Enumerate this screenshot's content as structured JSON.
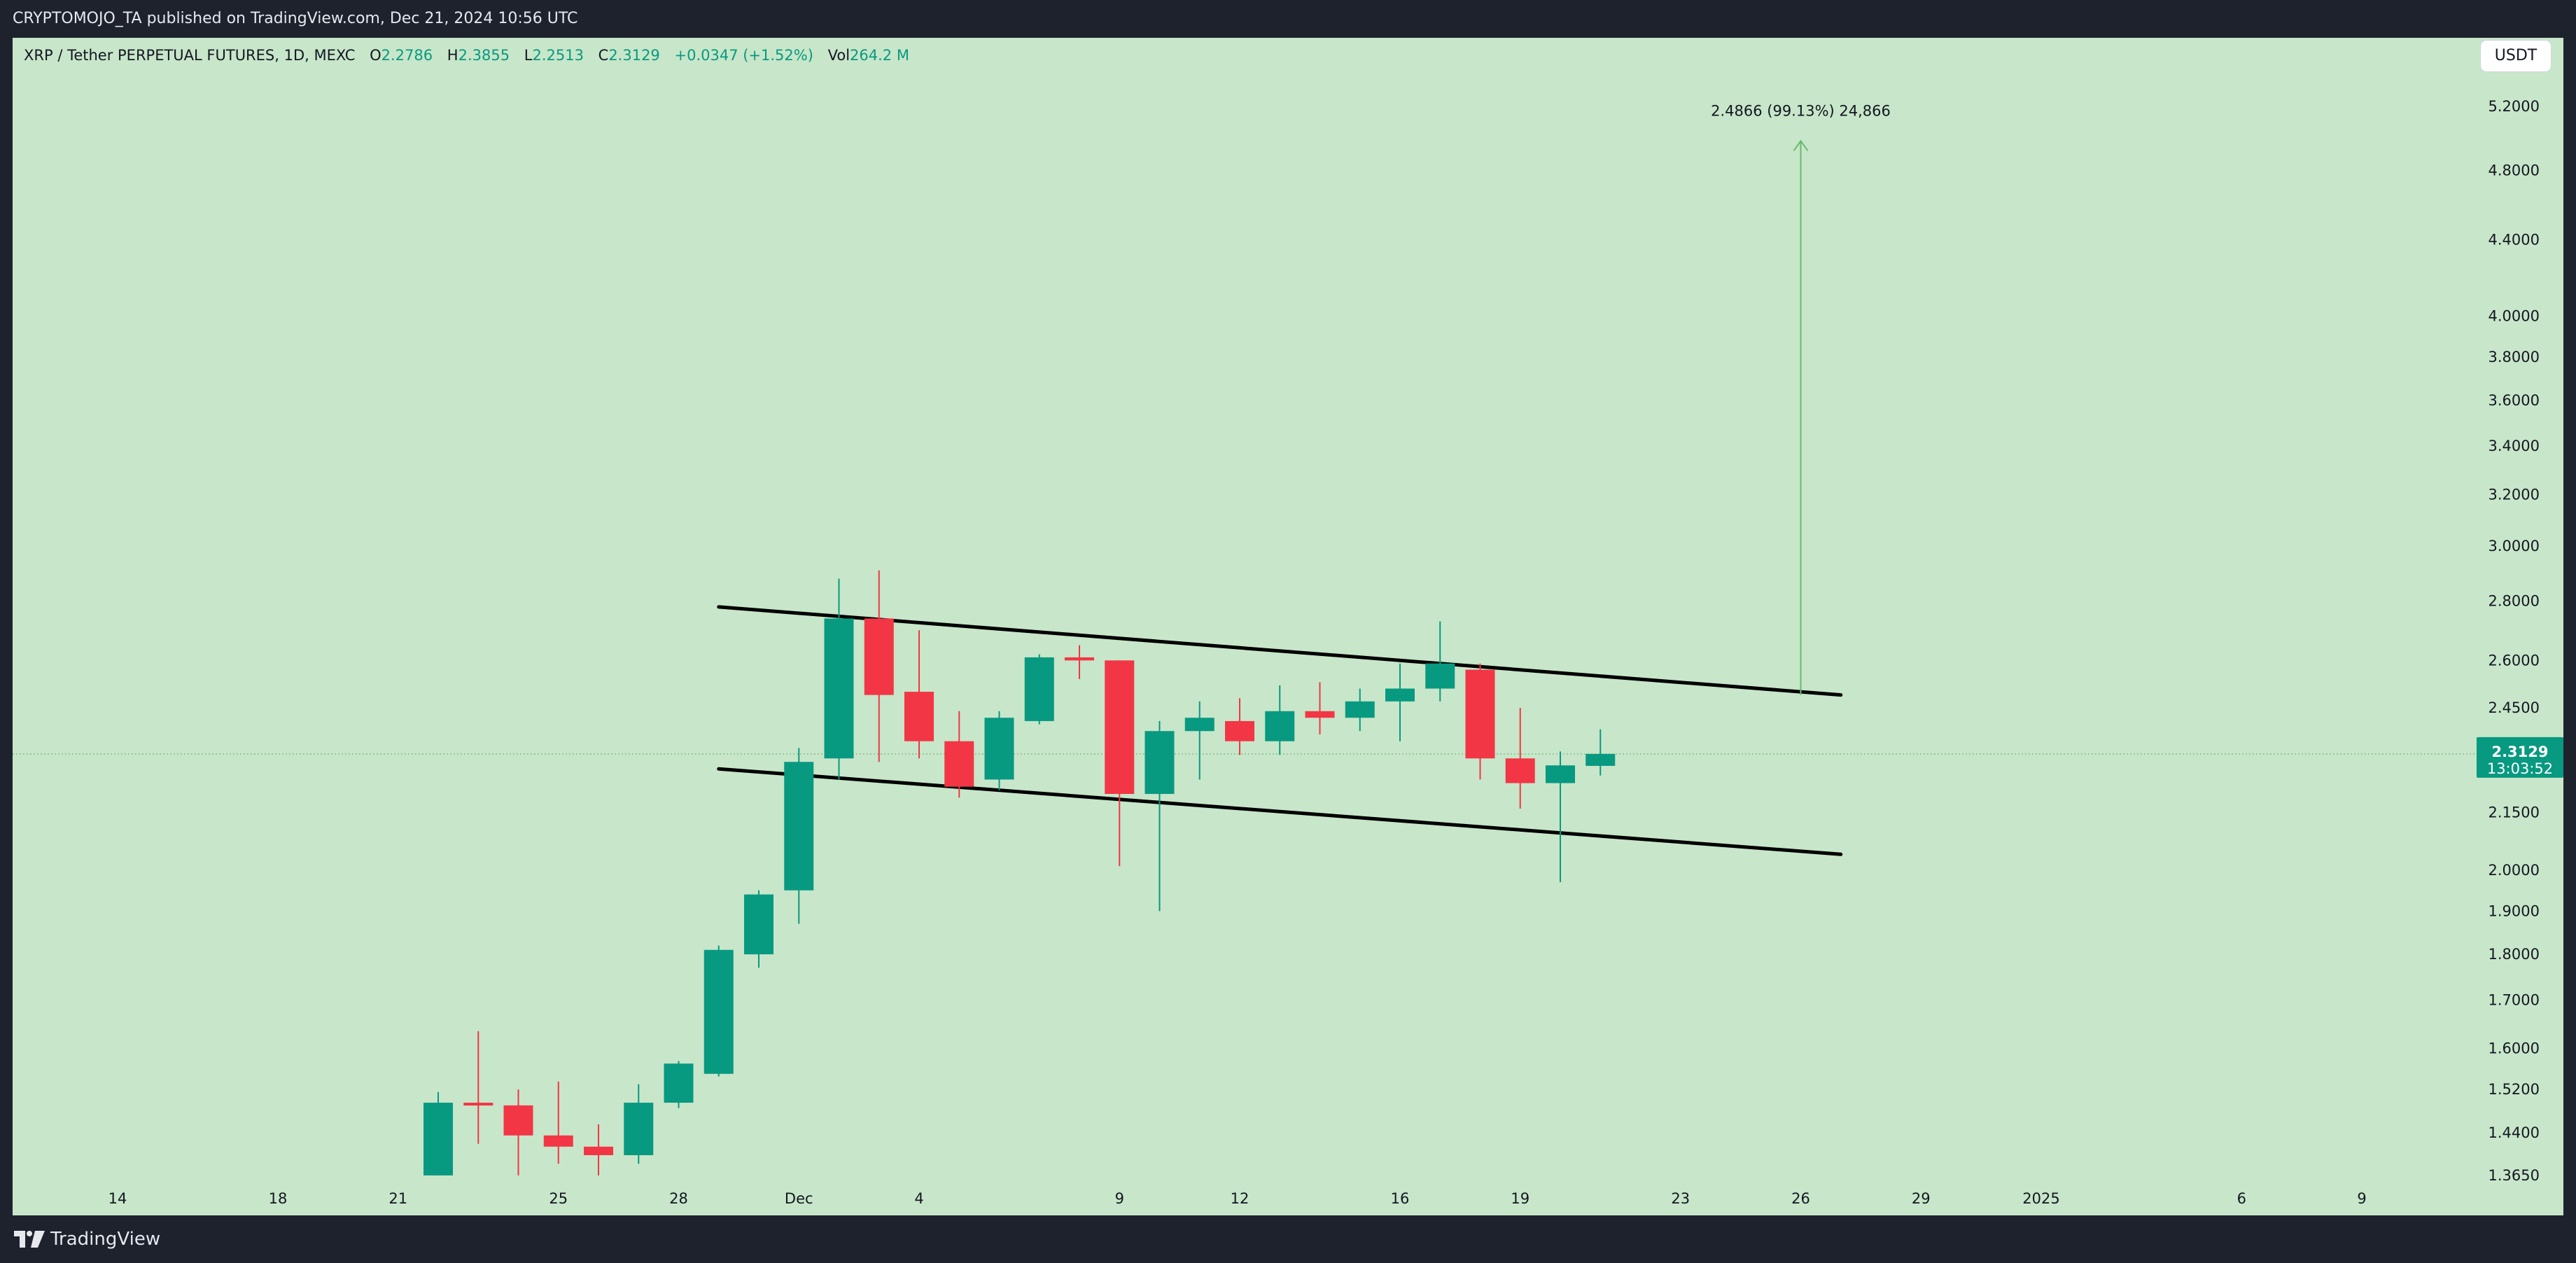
{
  "header": {
    "publisher": "CRYPTOMOJO_TA published on TradingView.com, Dec 21, 2024 10:56 UTC"
  },
  "legend": {
    "symbol": "XRP / Tether PERPETUAL FUTURES, 1D, MEXC",
    "open_label": "O",
    "open": "2.2786",
    "high_label": "H",
    "high": "2.3855",
    "low_label": "L",
    "low": "2.2513",
    "close_label": "C",
    "close": "2.3129",
    "change": "+0.0347 (+1.52%)",
    "vol_label": "Vol",
    "vol": "264.2 M"
  },
  "currency_button": "USDT",
  "footer": {
    "brand": "TradingView"
  },
  "colors": {
    "background": "#c8e6c9",
    "up": "#089981",
    "down": "#f23645",
    "trendline": "#000000",
    "projection": "#66bb6a"
  },
  "chart_data": {
    "type": "candlestick",
    "title": "",
    "x_tick_labels": [
      "14",
      "18",
      "21",
      "25",
      "28",
      "Dec",
      "4",
      "9",
      "12",
      "16",
      "19",
      "23",
      "26",
      "29",
      "2025",
      "6",
      "9"
    ],
    "y_tick_labels": [
      "5.2000",
      "4.8000",
      "4.4000",
      "4.0000",
      "3.8000",
      "3.6000",
      "3.4000",
      "3.2000",
      "3.0000",
      "2.8000",
      "2.6000",
      "2.4500",
      "2.1500",
      "2.0000",
      "1.9000",
      "1.8000",
      "1.7000",
      "1.6000",
      "1.5200",
      "1.4400",
      "1.3650"
    ],
    "y_scale": "log",
    "candles": [
      {
        "date": "2024-11-22",
        "open": 1.365,
        "high": 1.515,
        "low": 1.365,
        "close": 1.495
      },
      {
        "date": "2024-11-23",
        "open": 1.495,
        "high": 1.635,
        "low": 1.42,
        "close": 1.49
      },
      {
        "date": "2024-11-24",
        "open": 1.49,
        "high": 1.52,
        "low": 1.365,
        "close": 1.435
      },
      {
        "date": "2024-11-25",
        "open": 1.435,
        "high": 1.535,
        "low": 1.385,
        "close": 1.415
      },
      {
        "date": "2024-11-26",
        "open": 1.415,
        "high": 1.455,
        "low": 1.365,
        "close": 1.4
      },
      {
        "date": "2024-11-27",
        "open": 1.4,
        "high": 1.53,
        "low": 1.385,
        "close": 1.495
      },
      {
        "date": "2024-11-28",
        "open": 1.495,
        "high": 1.575,
        "low": 1.485,
        "close": 1.57
      },
      {
        "date": "2024-11-29",
        "open": 1.55,
        "high": 1.82,
        "low": 1.545,
        "close": 1.81
      },
      {
        "date": "2024-11-30",
        "open": 1.8,
        "high": 1.95,
        "low": 1.77,
        "close": 1.94
      },
      {
        "date": "2024-12-01",
        "open": 1.95,
        "high": 2.33,
        "low": 1.87,
        "close": 2.29
      },
      {
        "date": "2024-12-02",
        "open": 2.3,
        "high": 2.88,
        "low": 2.24,
        "close": 2.74
      },
      {
        "date": "2024-12-03",
        "open": 2.74,
        "high": 2.91,
        "low": 2.29,
        "close": 2.49
      },
      {
        "date": "2024-12-04",
        "open": 2.5,
        "high": 2.7,
        "low": 2.3,
        "close": 2.35
      },
      {
        "date": "2024-12-05",
        "open": 2.35,
        "high": 2.44,
        "low": 2.19,
        "close": 2.22
      },
      {
        "date": "2024-12-06",
        "open": 2.24,
        "high": 2.44,
        "low": 2.21,
        "close": 2.42
      },
      {
        "date": "2024-12-07",
        "open": 2.41,
        "high": 2.62,
        "low": 2.4,
        "close": 2.61
      },
      {
        "date": "2024-12-08",
        "open": 2.61,
        "high": 2.65,
        "low": 2.54,
        "close": 2.6
      },
      {
        "date": "2024-12-09",
        "open": 2.6,
        "high": 2.6,
        "low": 2.01,
        "close": 2.2
      },
      {
        "date": "2024-12-10",
        "open": 2.2,
        "high": 2.41,
        "low": 1.9,
        "close": 2.38
      },
      {
        "date": "2024-12-11",
        "open": 2.38,
        "high": 2.47,
        "low": 2.24,
        "close": 2.42
      },
      {
        "date": "2024-12-12",
        "open": 2.41,
        "high": 2.48,
        "low": 2.31,
        "close": 2.35
      },
      {
        "date": "2024-12-13",
        "open": 2.35,
        "high": 2.52,
        "low": 2.31,
        "close": 2.44
      },
      {
        "date": "2024-12-14",
        "open": 2.44,
        "high": 2.53,
        "low": 2.37,
        "close": 2.42
      },
      {
        "date": "2024-12-15",
        "open": 2.42,
        "high": 2.51,
        "low": 2.38,
        "close": 2.47
      },
      {
        "date": "2024-12-16",
        "open": 2.47,
        "high": 2.59,
        "low": 2.35,
        "close": 2.51
      },
      {
        "date": "2024-12-17",
        "open": 2.51,
        "high": 2.73,
        "low": 2.47,
        "close": 2.59
      },
      {
        "date": "2024-12-18",
        "open": 2.57,
        "high": 2.59,
        "low": 2.24,
        "close": 2.3
      },
      {
        "date": "2024-12-19",
        "open": 2.3,
        "high": 2.45,
        "low": 2.16,
        "close": 2.23
      },
      {
        "date": "2024-12-20",
        "open": 2.23,
        "high": 2.32,
        "low": 1.97,
        "close": 2.28
      },
      {
        "date": "2024-12-21",
        "open": 2.2786,
        "high": 2.3855,
        "low": 2.2513,
        "close": 2.3129
      }
    ],
    "annotations": {
      "channel_upper": {
        "start": {
          "date": "2024-11-29",
          "price": 2.78
        },
        "end": {
          "date": "2024-12-27",
          "price": 2.49
        }
      },
      "channel_lower": {
        "start": {
          "date": "2024-11-29",
          "price": 2.27
        },
        "end": {
          "date": "2024-12-27",
          "price": 2.04
        }
      },
      "projection": {
        "date": "2024-12-26",
        "from": 2.49,
        "to": 4.98,
        "label": "2.4866 (99.13%) 24,866"
      }
    },
    "last_price": {
      "value": "2.3129",
      "countdown": "13:03:52"
    }
  }
}
